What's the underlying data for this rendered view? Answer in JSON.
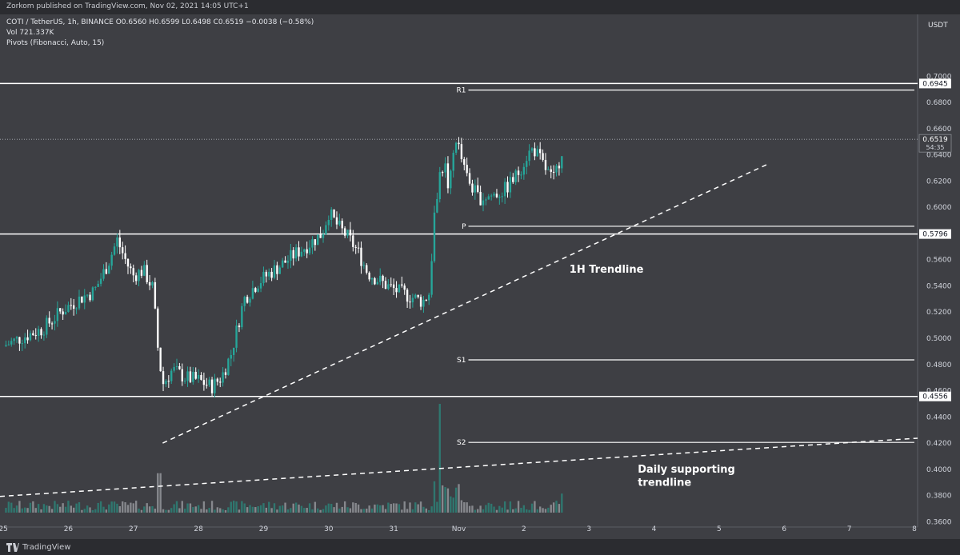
{
  "publisher": "Zorkom published on TradingView.com, Nov 02, 2021 14:05 UTC+1",
  "legend": {
    "symbol_line": "COTI / TetherUS, 1h, BINANCE  O0.6560  H0.6599  L0.6498  C0.6519  −0.0038 (−0.58%)",
    "volume_line": "Vol  721.337K",
    "indicator_line": "Pivots (Fibonacci, Auto, 15)"
  },
  "currency": "USDT",
  "branding": "TradingView",
  "colors": {
    "up": "#26a69a",
    "down": "#ffffff",
    "background": "#3e3f44",
    "lines": "#ffffff"
  },
  "chart_data": {
    "type": "candlestick",
    "symbol": "COTI / TetherUS",
    "interval": "1h",
    "exchange": "BINANCE",
    "y_ticks": [
      0.7,
      0.68,
      0.66,
      0.64,
      0.62,
      0.6,
      0.58,
      0.56,
      0.54,
      0.52,
      0.5,
      0.48,
      0.46,
      0.44,
      0.42,
      0.4,
      0.38,
      0.36
    ],
    "y_tick_labels": [
      "0.7000",
      "0.6800",
      "0.6600",
      "0.6400",
      "0.6200",
      "0.6000",
      "0.5800",
      "0.5600",
      "0.5400",
      "0.5200",
      "0.5000",
      "0.4800",
      "0.4600",
      "0.4400",
      "0.4200",
      "0.4000",
      "0.3800",
      "0.3600"
    ],
    "ylim": [
      0.3492,
      0.7094
    ],
    "x_ticks": [
      {
        "label": "25",
        "day": 0
      },
      {
        "label": "26",
        "day": 1
      },
      {
        "label": "27",
        "day": 2
      },
      {
        "label": "28",
        "day": 3
      },
      {
        "label": "29",
        "day": 4
      },
      {
        "label": "30",
        "day": 5
      },
      {
        "label": "31",
        "day": 6
      },
      {
        "label": "Nov",
        "day": 7
      },
      {
        "label": "2",
        "day": 8
      },
      {
        "label": "3",
        "day": 9
      },
      {
        "label": "4",
        "day": 10
      },
      {
        "label": "5",
        "day": 11
      },
      {
        "label": "6",
        "day": 12
      },
      {
        "label": "7",
        "day": 13
      },
      {
        "label": "8",
        "day": 14
      }
    ],
    "xlim": [
      -0.05,
      14.05
    ],
    "price_anchors": [
      [
        0.0,
        0.494
      ],
      [
        0.3,
        0.501
      ],
      [
        0.6,
        0.507
      ],
      [
        0.9,
        0.521
      ],
      [
        1.2,
        0.531
      ],
      [
        1.4,
        0.536
      ],
      [
        1.6,
        0.556
      ],
      [
        1.75,
        0.575
      ],
      [
        1.9,
        0.557
      ],
      [
        2.0,
        0.548
      ],
      [
        2.15,
        0.552
      ],
      [
        2.3,
        0.538
      ],
      [
        2.38,
        0.49
      ],
      [
        2.45,
        0.465
      ],
      [
        2.6,
        0.476
      ],
      [
        2.8,
        0.47
      ],
      [
        3.0,
        0.468
      ],
      [
        3.2,
        0.463
      ],
      [
        3.35,
        0.47
      ],
      [
        3.5,
        0.488
      ],
      [
        3.7,
        0.53
      ],
      [
        3.9,
        0.542
      ],
      [
        4.1,
        0.55
      ],
      [
        4.3,
        0.557
      ],
      [
        4.5,
        0.565
      ],
      [
        4.7,
        0.572
      ],
      [
        4.9,
        0.58
      ],
      [
        5.0,
        0.596
      ],
      [
        5.15,
        0.585
      ],
      [
        5.3,
        0.577
      ],
      [
        5.45,
        0.566
      ],
      [
        5.6,
        0.55
      ],
      [
        5.75,
        0.545
      ],
      [
        5.9,
        0.54
      ],
      [
        6.1,
        0.535
      ],
      [
        6.3,
        0.531
      ],
      [
        6.45,
        0.528
      ],
      [
        6.55,
        0.535
      ],
      [
        6.62,
        0.592
      ],
      [
        6.7,
        0.625
      ],
      [
        6.78,
        0.634
      ],
      [
        6.85,
        0.612
      ],
      [
        6.95,
        0.655
      ],
      [
        7.1,
        0.625
      ],
      [
        7.3,
        0.607
      ],
      [
        7.5,
        0.609
      ],
      [
        7.7,
        0.613
      ],
      [
        7.9,
        0.625
      ],
      [
        8.05,
        0.64
      ],
      [
        8.15,
        0.645
      ],
      [
        8.3,
        0.632
      ],
      [
        8.45,
        0.62
      ],
      [
        8.55,
        0.637
      ],
      [
        8.62,
        0.652
      ]
    ],
    "pivot_levels": [
      {
        "label": "R1",
        "price": 0.6895,
        "day_start": 7.0,
        "day_end": 14.0
      },
      {
        "label": "P",
        "price": 0.5855,
        "day_start": 7.0,
        "day_end": 14.0
      },
      {
        "label": "S1",
        "price": 0.4835,
        "day_start": 7.0,
        "day_end": 14.0
      },
      {
        "label": "S2",
        "price": 0.4205,
        "day_start": 7.0,
        "day_end": 14.0
      }
    ],
    "horizontal_lines": [
      {
        "price": 0.6945,
        "label": "0.6945"
      },
      {
        "price": 0.5796,
        "label": "0.5796"
      },
      {
        "price": 0.4556,
        "label": "0.4556"
      }
    ],
    "last_price": {
      "price": 0.6519,
      "label": "0.6519",
      "countdown": "54:35"
    },
    "trendlines": [
      {
        "label": "1H Trendline",
        "from": {
          "day": 2.45,
          "price": 0.42
        },
        "to": {
          "day": 11.75,
          "price": 0.633
        }
      },
      {
        "label": "Daily supporting trendline",
        "from": {
          "day": -0.05,
          "price": 0.3793
        },
        "to": {
          "day": 14.05,
          "price": 0.4237
        }
      }
    ],
    "annotations": [
      {
        "text": "1H Trendline",
        "day": 8.7,
        "price": 0.5502
      },
      {
        "text": "Daily supporting",
        "day": 9.75,
        "price": 0.3975
      },
      {
        "text": "trendline",
        "day": 9.75,
        "price": 0.3875
      }
    ],
    "volume_spikes": [
      {
        "day": 2.4,
        "relative_height": 0.29
      },
      {
        "day": 6.72,
        "relative_height": 0.8
      },
      {
        "day": 6.95,
        "relative_height": 0.2
      },
      {
        "day": 8.6,
        "relative_height": 0.14
      }
    ]
  }
}
